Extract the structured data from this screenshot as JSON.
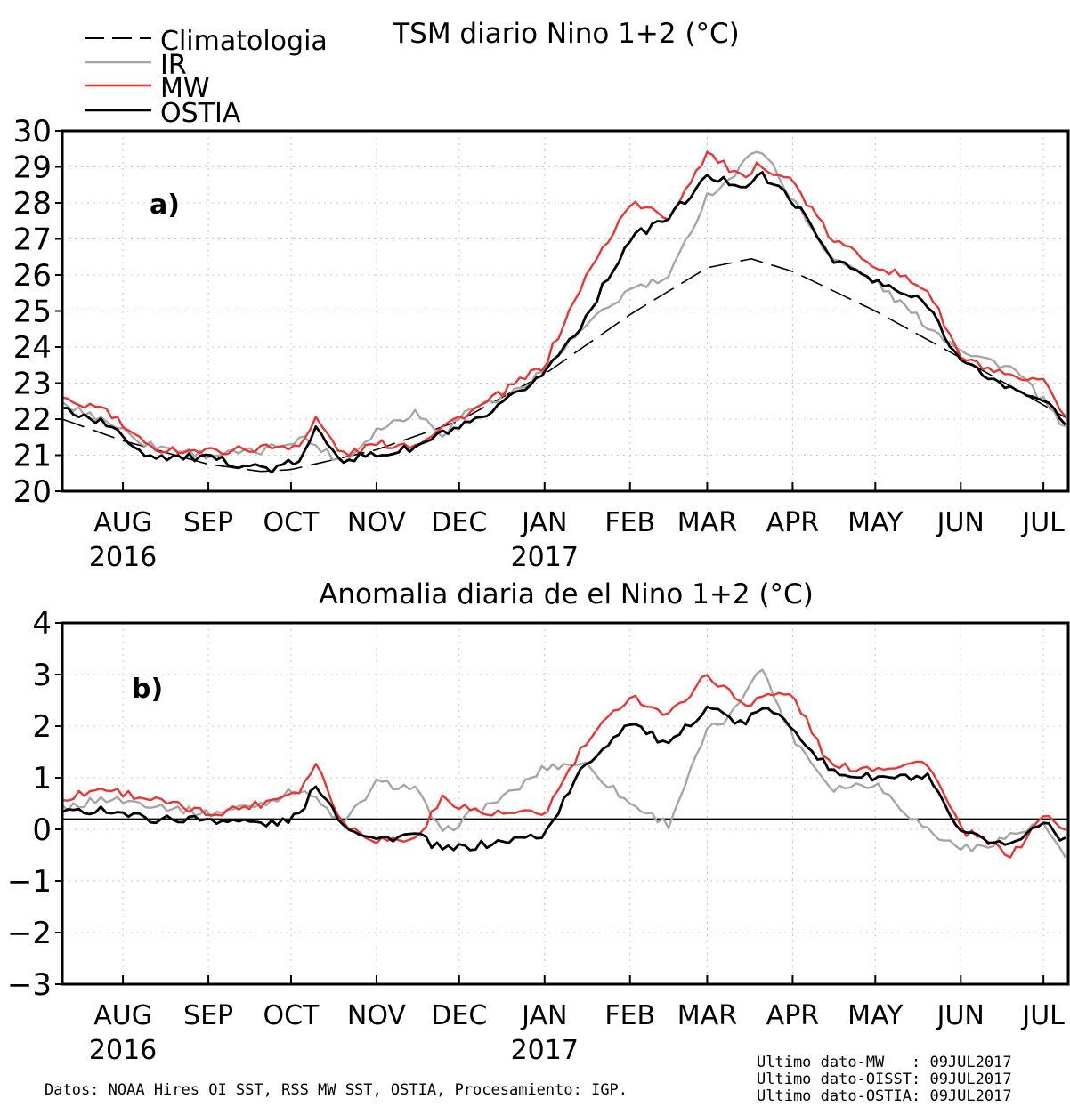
{
  "colors": {
    "clim": "#000000",
    "ir": "#a6a6a6",
    "mw": "#ee3333",
    "ostia": "#000000",
    "grid": "#c8c8c8"
  },
  "footer": {
    "source": "Datos: NOAA Hires OI SST, RSS MW SST, OSTIA, Procesamiento: IGP.",
    "last1": "Ultimo dato-MW   : 09JUL2017",
    "last2": "Ultimo dato-OISST: 09JUL2017",
    "last3": "Ultimo dato-OSTIA: 09JUL2017"
  },
  "chart_data": [
    {
      "type": "line",
      "panel_label": "a)",
      "title": "TSM diario Nino 1+2 (°C)",
      "xlim": [
        "2016-07-10",
        "2017-07-10"
      ],
      "ylim": [
        20,
        30
      ],
      "yticks": [
        20,
        21,
        22,
        23,
        24,
        25,
        26,
        27,
        28,
        29,
        30
      ],
      "xticks": [
        {
          "date": "2016-08-01",
          "label": "AUG",
          "sub": "2016"
        },
        {
          "date": "2016-09-01",
          "label": "SEP",
          "sub": ""
        },
        {
          "date": "2016-10-01",
          "label": "OCT",
          "sub": ""
        },
        {
          "date": "2016-11-01",
          "label": "NOV",
          "sub": ""
        },
        {
          "date": "2016-12-01",
          "label": "DEC",
          "sub": ""
        },
        {
          "date": "2017-01-01",
          "label": "JAN",
          "sub": "2017"
        },
        {
          "date": "2017-02-01",
          "label": "FEB",
          "sub": ""
        },
        {
          "date": "2017-03-01",
          "label": "MAR",
          "sub": ""
        },
        {
          "date": "2017-04-01",
          "label": "APR",
          "sub": ""
        },
        {
          "date": "2017-05-01",
          "label": "MAY",
          "sub": ""
        },
        {
          "date": "2017-06-01",
          "label": "JUN",
          "sub": ""
        },
        {
          "date": "2017-07-01",
          "label": "JUL",
          "sub": ""
        }
      ],
      "grid": true,
      "legend": "top-left",
      "series": [
        {
          "name": "Climatologia",
          "key": "clim",
          "dash": true,
          "x": [
            "2016-07-10",
            "2016-08-01",
            "2016-09-01",
            "2016-09-20",
            "2016-10-01",
            "2016-11-01",
            "2016-12-01",
            "2017-01-01",
            "2017-02-01",
            "2017-03-01",
            "2017-03-17",
            "2017-04-01",
            "2017-05-01",
            "2017-06-01",
            "2017-07-10"
          ],
          "y": [
            22.0,
            21.4,
            20.75,
            20.55,
            20.6,
            21.15,
            21.95,
            23.25,
            24.9,
            26.2,
            26.45,
            26.1,
            25.0,
            23.7,
            22.0
          ]
        },
        {
          "name": "IR",
          "key": "ir",
          "dash": false,
          "x": [
            "2016-07-10",
            "2016-07-25",
            "2016-08-10",
            "2016-09-01",
            "2016-09-20",
            "2016-10-05",
            "2016-10-20",
            "2016-11-01",
            "2016-11-15",
            "2016-11-25",
            "2016-12-05",
            "2016-12-20",
            "2017-01-01",
            "2017-01-15",
            "2017-02-01",
            "2017-02-15",
            "2017-03-01",
            "2017-03-10",
            "2017-03-20",
            "2017-04-01",
            "2017-04-15",
            "2017-05-01",
            "2017-05-15",
            "2017-05-25",
            "2017-06-05",
            "2017-06-20",
            "2017-07-01",
            "2017-07-10"
          ],
          "y": [
            22.4,
            22.0,
            21.3,
            21.0,
            21.1,
            21.5,
            20.8,
            21.7,
            22.2,
            21.6,
            22.3,
            22.7,
            23.4,
            24.5,
            25.6,
            25.9,
            28.2,
            28.7,
            29.6,
            28.1,
            26.5,
            25.8,
            24.9,
            24.3,
            23.8,
            23.4,
            22.5,
            21.6
          ]
        },
        {
          "name": "MW",
          "key": "mw",
          "dash": false,
          "x": [
            "2016-07-10",
            "2016-07-25",
            "2016-08-10",
            "2016-09-01",
            "2016-09-20",
            "2016-10-05",
            "2016-10-10",
            "2016-10-20",
            "2016-11-01",
            "2016-11-15",
            "2016-11-25",
            "2016-12-10",
            "2017-01-01",
            "2017-01-15",
            "2017-02-01",
            "2017-02-15",
            "2017-03-01",
            "2017-03-15",
            "2017-03-20",
            "2017-04-01",
            "2017-04-15",
            "2017-05-01",
            "2017-05-20",
            "2017-06-01",
            "2017-06-20",
            "2017-07-01",
            "2017-07-10"
          ],
          "y": [
            22.5,
            22.3,
            21.2,
            21.1,
            21.2,
            21.3,
            22.0,
            21.0,
            21.3,
            21.3,
            21.8,
            22.4,
            23.5,
            25.8,
            28.0,
            27.6,
            29.4,
            28.6,
            29.1,
            28.6,
            27.0,
            26.3,
            25.6,
            23.7,
            23.1,
            23.0,
            22.0
          ]
        },
        {
          "name": "OSTIA",
          "key": "ostia",
          "dash": false,
          "x": [
            "2016-07-10",
            "2016-07-25",
            "2016-08-10",
            "2016-09-01",
            "2016-09-25",
            "2016-10-05",
            "2016-10-10",
            "2016-10-20",
            "2016-11-01",
            "2016-11-15",
            "2016-11-25",
            "2016-12-10",
            "2017-01-01",
            "2017-01-15",
            "2017-02-01",
            "2017-02-15",
            "2017-03-01",
            "2017-03-15",
            "2017-03-20",
            "2017-04-01",
            "2017-04-15",
            "2017-05-01",
            "2017-05-20",
            "2017-06-01",
            "2017-06-20",
            "2017-07-01",
            "2017-07-10"
          ],
          "y": [
            22.3,
            21.9,
            21.0,
            20.9,
            20.6,
            20.9,
            21.7,
            20.9,
            21.0,
            21.2,
            21.6,
            22.0,
            23.3,
            24.7,
            27.0,
            27.6,
            28.7,
            28.5,
            28.8,
            28.1,
            26.5,
            25.8,
            25.2,
            23.6,
            22.8,
            22.6,
            21.7
          ]
        }
      ]
    },
    {
      "type": "line",
      "panel_label": "b)",
      "title": "Anomalia diaria de el Nino 1+2 (°C)",
      "xlim": [
        "2016-07-10",
        "2017-07-10"
      ],
      "ylim": [
        -3,
        4
      ],
      "yticks": [
        -3,
        -2,
        -1,
        0,
        1,
        2,
        3,
        4
      ],
      "reference_line": 0.2,
      "xticks": [
        {
          "date": "2016-08-01",
          "label": "AUG",
          "sub": "2016"
        },
        {
          "date": "2016-09-01",
          "label": "SEP",
          "sub": ""
        },
        {
          "date": "2016-10-01",
          "label": "OCT",
          "sub": ""
        },
        {
          "date": "2016-11-01",
          "label": "NOV",
          "sub": ""
        },
        {
          "date": "2016-12-01",
          "label": "DEC",
          "sub": ""
        },
        {
          "date": "2017-01-01",
          "label": "JAN",
          "sub": "2017"
        },
        {
          "date": "2017-02-01",
          "label": "FEB",
          "sub": ""
        },
        {
          "date": "2017-03-01",
          "label": "MAR",
          "sub": ""
        },
        {
          "date": "2017-04-01",
          "label": "APR",
          "sub": ""
        },
        {
          "date": "2017-05-01",
          "label": "MAY",
          "sub": ""
        },
        {
          "date": "2017-06-01",
          "label": "JUN",
          "sub": ""
        },
        {
          "date": "2017-07-01",
          "label": "JUL",
          "sub": ""
        }
      ],
      "grid": true,
      "series": [
        {
          "name": "IR",
          "key": "ir",
          "dash": false,
          "x": [
            "2016-07-10",
            "2016-07-25",
            "2016-08-10",
            "2016-09-01",
            "2016-09-20",
            "2016-10-05",
            "2016-10-20",
            "2016-11-01",
            "2016-11-15",
            "2016-11-25",
            "2016-12-05",
            "2016-12-20",
            "2017-01-01",
            "2017-01-15",
            "2017-02-01",
            "2017-02-15",
            "2017-03-01",
            "2017-03-10",
            "2017-03-20",
            "2017-04-01",
            "2017-04-15",
            "2017-05-01",
            "2017-05-15",
            "2017-05-25",
            "2017-06-05",
            "2017-06-20",
            "2017-07-01",
            "2017-07-10"
          ],
          "y": [
            0.4,
            0.6,
            0.5,
            0.3,
            0.5,
            0.8,
            0.1,
            0.9,
            0.8,
            -0.1,
            0.3,
            0.7,
            1.2,
            1.3,
            0.5,
            0.1,
            1.9,
            2.2,
            3.2,
            1.8,
            0.8,
            0.9,
            0.2,
            -0.2,
            -0.4,
            -0.1,
            0.1,
            -0.7
          ]
        },
        {
          "name": "MW",
          "key": "mw",
          "dash": false,
          "x": [
            "2016-07-10",
            "2016-07-25",
            "2016-08-10",
            "2016-09-01",
            "2016-09-20",
            "2016-10-05",
            "2016-10-10",
            "2016-10-20",
            "2016-11-01",
            "2016-11-15",
            "2016-11-25",
            "2016-12-10",
            "2017-01-01",
            "2017-01-15",
            "2017-02-01",
            "2017-02-15",
            "2017-03-01",
            "2017-03-15",
            "2017-03-20",
            "2017-04-01",
            "2017-04-15",
            "2017-05-01",
            "2017-05-20",
            "2017-06-01",
            "2017-06-20",
            "2017-07-01",
            "2017-07-10"
          ],
          "y": [
            0.6,
            0.8,
            0.6,
            0.3,
            0.5,
            0.8,
            1.3,
            0.1,
            -0.2,
            -0.2,
            0.6,
            0.3,
            0.3,
            1.6,
            2.6,
            2.2,
            3.0,
            2.4,
            2.6,
            2.6,
            1.2,
            1.2,
            1.3,
            0.0,
            -0.5,
            0.3,
            -0.1
          ]
        },
        {
          "name": "OSTIA",
          "key": "ostia",
          "dash": false,
          "x": [
            "2016-07-10",
            "2016-07-25",
            "2016-08-10",
            "2016-09-01",
            "2016-09-25",
            "2016-10-05",
            "2016-10-10",
            "2016-10-20",
            "2016-11-01",
            "2016-11-15",
            "2016-11-25",
            "2016-12-10",
            "2017-01-01",
            "2017-01-15",
            "2017-02-01",
            "2017-02-15",
            "2017-03-01",
            "2017-03-15",
            "2017-03-20",
            "2017-04-01",
            "2017-04-15",
            "2017-05-01",
            "2017-05-20",
            "2017-06-01",
            "2017-06-20",
            "2017-07-01",
            "2017-07-10"
          ],
          "y": [
            0.3,
            0.4,
            0.2,
            0.2,
            0.1,
            0.3,
            0.9,
            0.1,
            -0.2,
            -0.1,
            -0.4,
            -0.3,
            -0.1,
            1.2,
            2.1,
            1.6,
            2.4,
            2.0,
            2.4,
            2.0,
            1.1,
            1.0,
            1.0,
            -0.1,
            -0.3,
            0.2,
            -0.3
          ]
        }
      ]
    }
  ]
}
